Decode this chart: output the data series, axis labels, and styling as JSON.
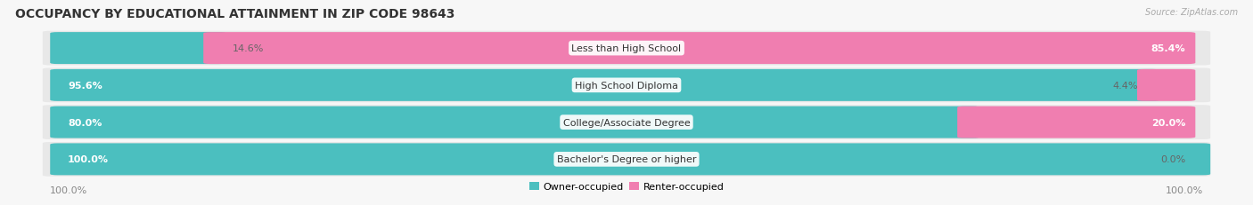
{
  "title": "OCCUPANCY BY EDUCATIONAL ATTAINMENT IN ZIP CODE 98643",
  "source": "Source: ZipAtlas.com",
  "categories": [
    "Less than High School",
    "High School Diploma",
    "College/Associate Degree",
    "Bachelor's Degree or higher"
  ],
  "owner_pct": [
    14.6,
    95.6,
    80.0,
    100.0
  ],
  "renter_pct": [
    85.4,
    4.4,
    20.0,
    0.0
  ],
  "owner_color": "#4BBFBF",
  "renter_color": "#F07EB0",
  "background_color": "#f7f7f7",
  "bar_bg_color": "#e8e8e8",
  "title_fontsize": 10,
  "label_fontsize": 8,
  "pct_fontsize": 8
}
